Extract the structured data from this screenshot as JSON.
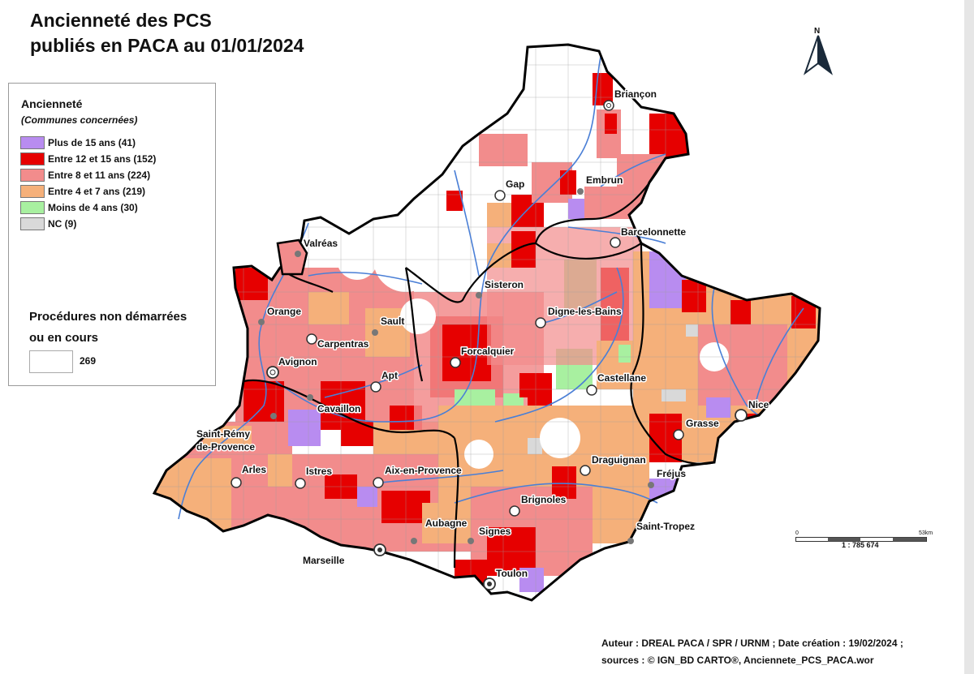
{
  "title": {
    "line1": "Ancienneté des PCS",
    "line2": "publiés en PACA au 01/01/2024"
  },
  "legend": {
    "title": "Ancienneté",
    "subtitle": "(Communes concernées)",
    "items": [
      {
        "label": "Plus de 15 ans (41)",
        "color": "#b88cf0"
      },
      {
        "label": "Entre 12 et 15 ans (152)",
        "color": "#e60000"
      },
      {
        "label": "Entre 8 et 11 ans (224)",
        "color": "#f28c8c"
      },
      {
        "label": "Entre 4 et 7 ans (219)",
        "color": "#f5b07a"
      },
      {
        "label": "Moins de 4 ans (30)",
        "color": "#a8f0a0"
      },
      {
        "label": "NC (9)",
        "color": "#d9d9d9"
      }
    ],
    "procedures_line1": "Procédures non démarrées",
    "procedures_line2": "ou en cours",
    "procedures_count": "269"
  },
  "map": {
    "colors": {
      "outline": "#000000",
      "river": "#4a7fd6",
      "commune_border": "#9e9e9e",
      "empty": "#ffffff"
    },
    "cities": [
      {
        "name": "Briançon",
        "marker": "prefecture"
      },
      {
        "name": "Gap",
        "marker": "prefecture"
      },
      {
        "name": "Embrun",
        "marker": "town"
      },
      {
        "name": "Barcelonnette",
        "marker": "prefecture"
      },
      {
        "name": "Valréas",
        "marker": "town"
      },
      {
        "name": "Sisteron",
        "marker": "town"
      },
      {
        "name": "Orange",
        "marker": "town"
      },
      {
        "name": "Sault",
        "marker": "town"
      },
      {
        "name": "Digne-les-Bains",
        "marker": "prefecture"
      },
      {
        "name": "Carpentras",
        "marker": "prefecture"
      },
      {
        "name": "Avignon",
        "marker": "prefecture"
      },
      {
        "name": "Forcalquier",
        "marker": "prefecture"
      },
      {
        "name": "Apt",
        "marker": "prefecture"
      },
      {
        "name": "Castellane",
        "marker": "prefecture"
      },
      {
        "name": "Nice",
        "marker": "prefecture"
      },
      {
        "name": "Cavaillon",
        "marker": "town"
      },
      {
        "name": "Saint-Rémy",
        "marker": "town"
      },
      {
        "name": "de-Provence",
        "marker": "none"
      },
      {
        "name": "Grasse",
        "marker": "prefecture"
      },
      {
        "name": "Arles",
        "marker": "prefecture"
      },
      {
        "name": "Istres",
        "marker": "prefecture"
      },
      {
        "name": "Aix-en-Provence",
        "marker": "prefecture"
      },
      {
        "name": "Draguignan",
        "marker": "prefecture"
      },
      {
        "name": "Fréjus",
        "marker": "town"
      },
      {
        "name": "Brignoles",
        "marker": "prefecture"
      },
      {
        "name": "Aubagne",
        "marker": "town"
      },
      {
        "name": "Signes",
        "marker": "town"
      },
      {
        "name": "Saint-Tropez",
        "marker": "town"
      },
      {
        "name": "Marseille",
        "marker": "prefecture"
      },
      {
        "name": "Toulon",
        "marker": "prefecture"
      }
    ]
  },
  "north_arrow": {
    "label": "N"
  },
  "scale": {
    "start": "0",
    "end": "53km",
    "ratio": "1 : 785 674"
  },
  "credits": {
    "line1": "Auteur : DREAL PACA / SPR / URNM ; Date création : 19/02/2024 ;",
    "line2": "sources : © IGN_BD CARTO®, Anciennete_PCS_PACA.wor"
  }
}
